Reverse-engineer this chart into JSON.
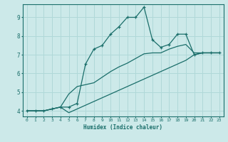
{
  "xlabel": "Humidex (Indice chaleur)",
  "bg_color": "#cce9e9",
  "line_color": "#1a6e6a",
  "grid_color": "#b0d8d8",
  "xlim": [
    -0.5,
    23.5
  ],
  "ylim": [
    3.7,
    9.7
  ],
  "xticks": [
    0,
    1,
    2,
    3,
    4,
    5,
    6,
    7,
    8,
    9,
    10,
    11,
    12,
    13,
    14,
    15,
    16,
    17,
    18,
    19,
    20,
    21,
    22,
    23
  ],
  "yticks": [
    4,
    5,
    6,
    7,
    8,
    9
  ],
  "line1_x": [
    0,
    1,
    2,
    3,
    4,
    5,
    6,
    7,
    8,
    9,
    10,
    11,
    12,
    13,
    14,
    15,
    16,
    17,
    18,
    19,
    20,
    21,
    22,
    23
  ],
  "line1_y": [
    4.0,
    4.0,
    4.0,
    4.1,
    4.2,
    3.9,
    4.1,
    4.3,
    4.5,
    4.7,
    4.9,
    5.1,
    5.3,
    5.5,
    5.7,
    5.9,
    6.1,
    6.3,
    6.5,
    6.7,
    7.0,
    7.1,
    7.1,
    7.1
  ],
  "line2_x": [
    0,
    1,
    2,
    3,
    4,
    5,
    6,
    7,
    8,
    9,
    10,
    11,
    12,
    13,
    14,
    15,
    16,
    17,
    18,
    19,
    20,
    21,
    22,
    23
  ],
  "line2_y": [
    4.0,
    4.0,
    4.0,
    4.1,
    4.2,
    4.2,
    4.4,
    6.5,
    7.3,
    7.5,
    8.1,
    8.5,
    9.0,
    9.0,
    9.55,
    7.8,
    7.4,
    7.55,
    8.1,
    8.1,
    7.0,
    7.1,
    7.1,
    7.1
  ],
  "line3_x": [
    0,
    1,
    2,
    3,
    4,
    5,
    6,
    7,
    8,
    9,
    10,
    11,
    12,
    13,
    14,
    15,
    16,
    17,
    18,
    19,
    20,
    21,
    22,
    23
  ],
  "line3_y": [
    4.0,
    4.0,
    4.0,
    4.1,
    4.2,
    4.9,
    5.3,
    5.4,
    5.5,
    5.8,
    6.1,
    6.35,
    6.55,
    6.8,
    7.05,
    7.1,
    7.1,
    7.3,
    7.45,
    7.55,
    7.1,
    7.1,
    7.1,
    7.1
  ]
}
